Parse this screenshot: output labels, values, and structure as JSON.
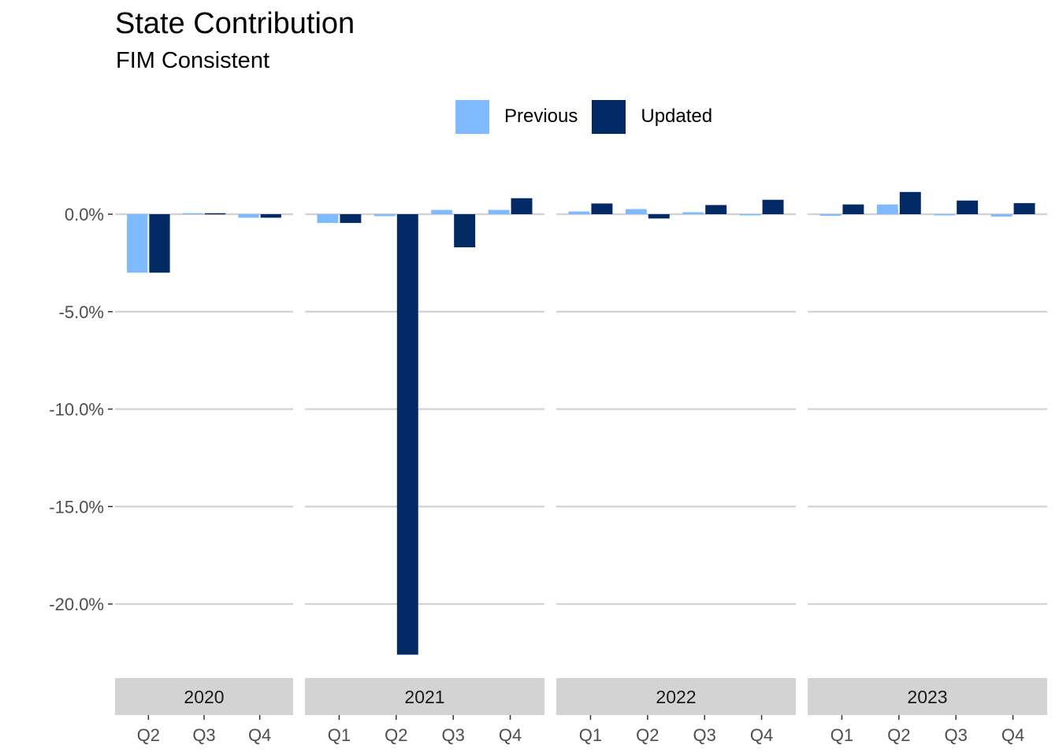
{
  "chart_data": {
    "type": "bar",
    "title": "State Contribution",
    "subtitle": "FIM Consistent",
    "xlabel": "",
    "ylabel": "",
    "ylim": [
      -23.3,
      2.5
    ],
    "yticks": [
      0,
      -5,
      -10,
      -15,
      -20
    ],
    "ytick_labels": [
      "0.0%",
      "-5.0%",
      "-10.0%",
      "-15.0%",
      "-20.0%"
    ],
    "grid": true,
    "legend_position": "top",
    "series": [
      {
        "name": "Previous",
        "color": "#7FB9FF"
      },
      {
        "name": "Updated",
        "color": "#042A66"
      }
    ],
    "facets": [
      {
        "label": "2020",
        "categories": [
          "Q2",
          "Q3",
          "Q4"
        ],
        "values": {
          "Previous": [
            -3.0,
            0.05,
            -0.18
          ],
          "Updated": [
            -3.0,
            0.05,
            -0.18
          ]
        }
      },
      {
        "label": "2021",
        "categories": [
          "Q1",
          "Q2",
          "Q3",
          "Q4"
        ],
        "values": {
          "Previous": [
            -0.45,
            -0.1,
            0.22,
            0.22
          ],
          "Updated": [
            -0.45,
            -22.6,
            -1.7,
            0.82
          ]
        }
      },
      {
        "label": "2022",
        "categories": [
          "Q1",
          "Q2",
          "Q3",
          "Q4"
        ],
        "values": {
          "Previous": [
            0.14,
            0.26,
            0.1,
            -0.03
          ],
          "Updated": [
            0.55,
            -0.22,
            0.47,
            0.74
          ]
        }
      },
      {
        "label": "2023",
        "categories": [
          "Q1",
          "Q2",
          "Q3",
          "Q4"
        ],
        "values": {
          "Previous": [
            -0.08,
            0.5,
            -0.03,
            -0.12
          ],
          "Updated": [
            0.5,
            1.14,
            0.7,
            0.57
          ]
        }
      }
    ]
  }
}
